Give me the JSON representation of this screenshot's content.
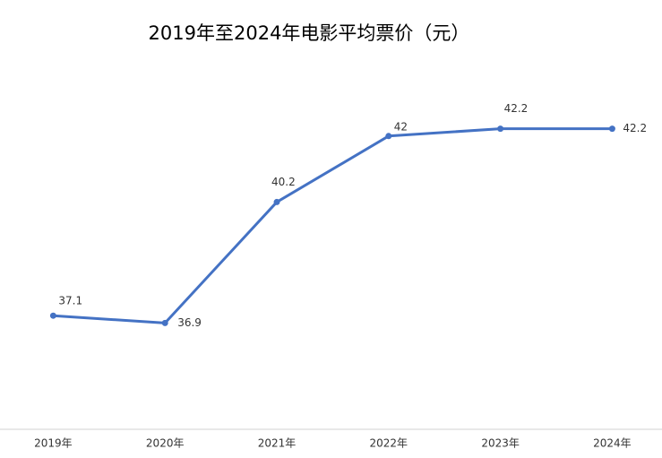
{
  "chart_data": {
    "type": "line",
    "title": "2019年至2024年电影平均票价（元）",
    "categories": [
      "2019年",
      "2020年",
      "2021年",
      "2022年",
      "2023年",
      "2024年"
    ],
    "series": [
      {
        "name": "平均票价",
        "color": "#4472c4",
        "values": [
          37.1,
          36.9,
          40.2,
          42,
          42.2,
          42.2
        ]
      }
    ],
    "ylim": [
      34,
      44
    ]
  }
}
